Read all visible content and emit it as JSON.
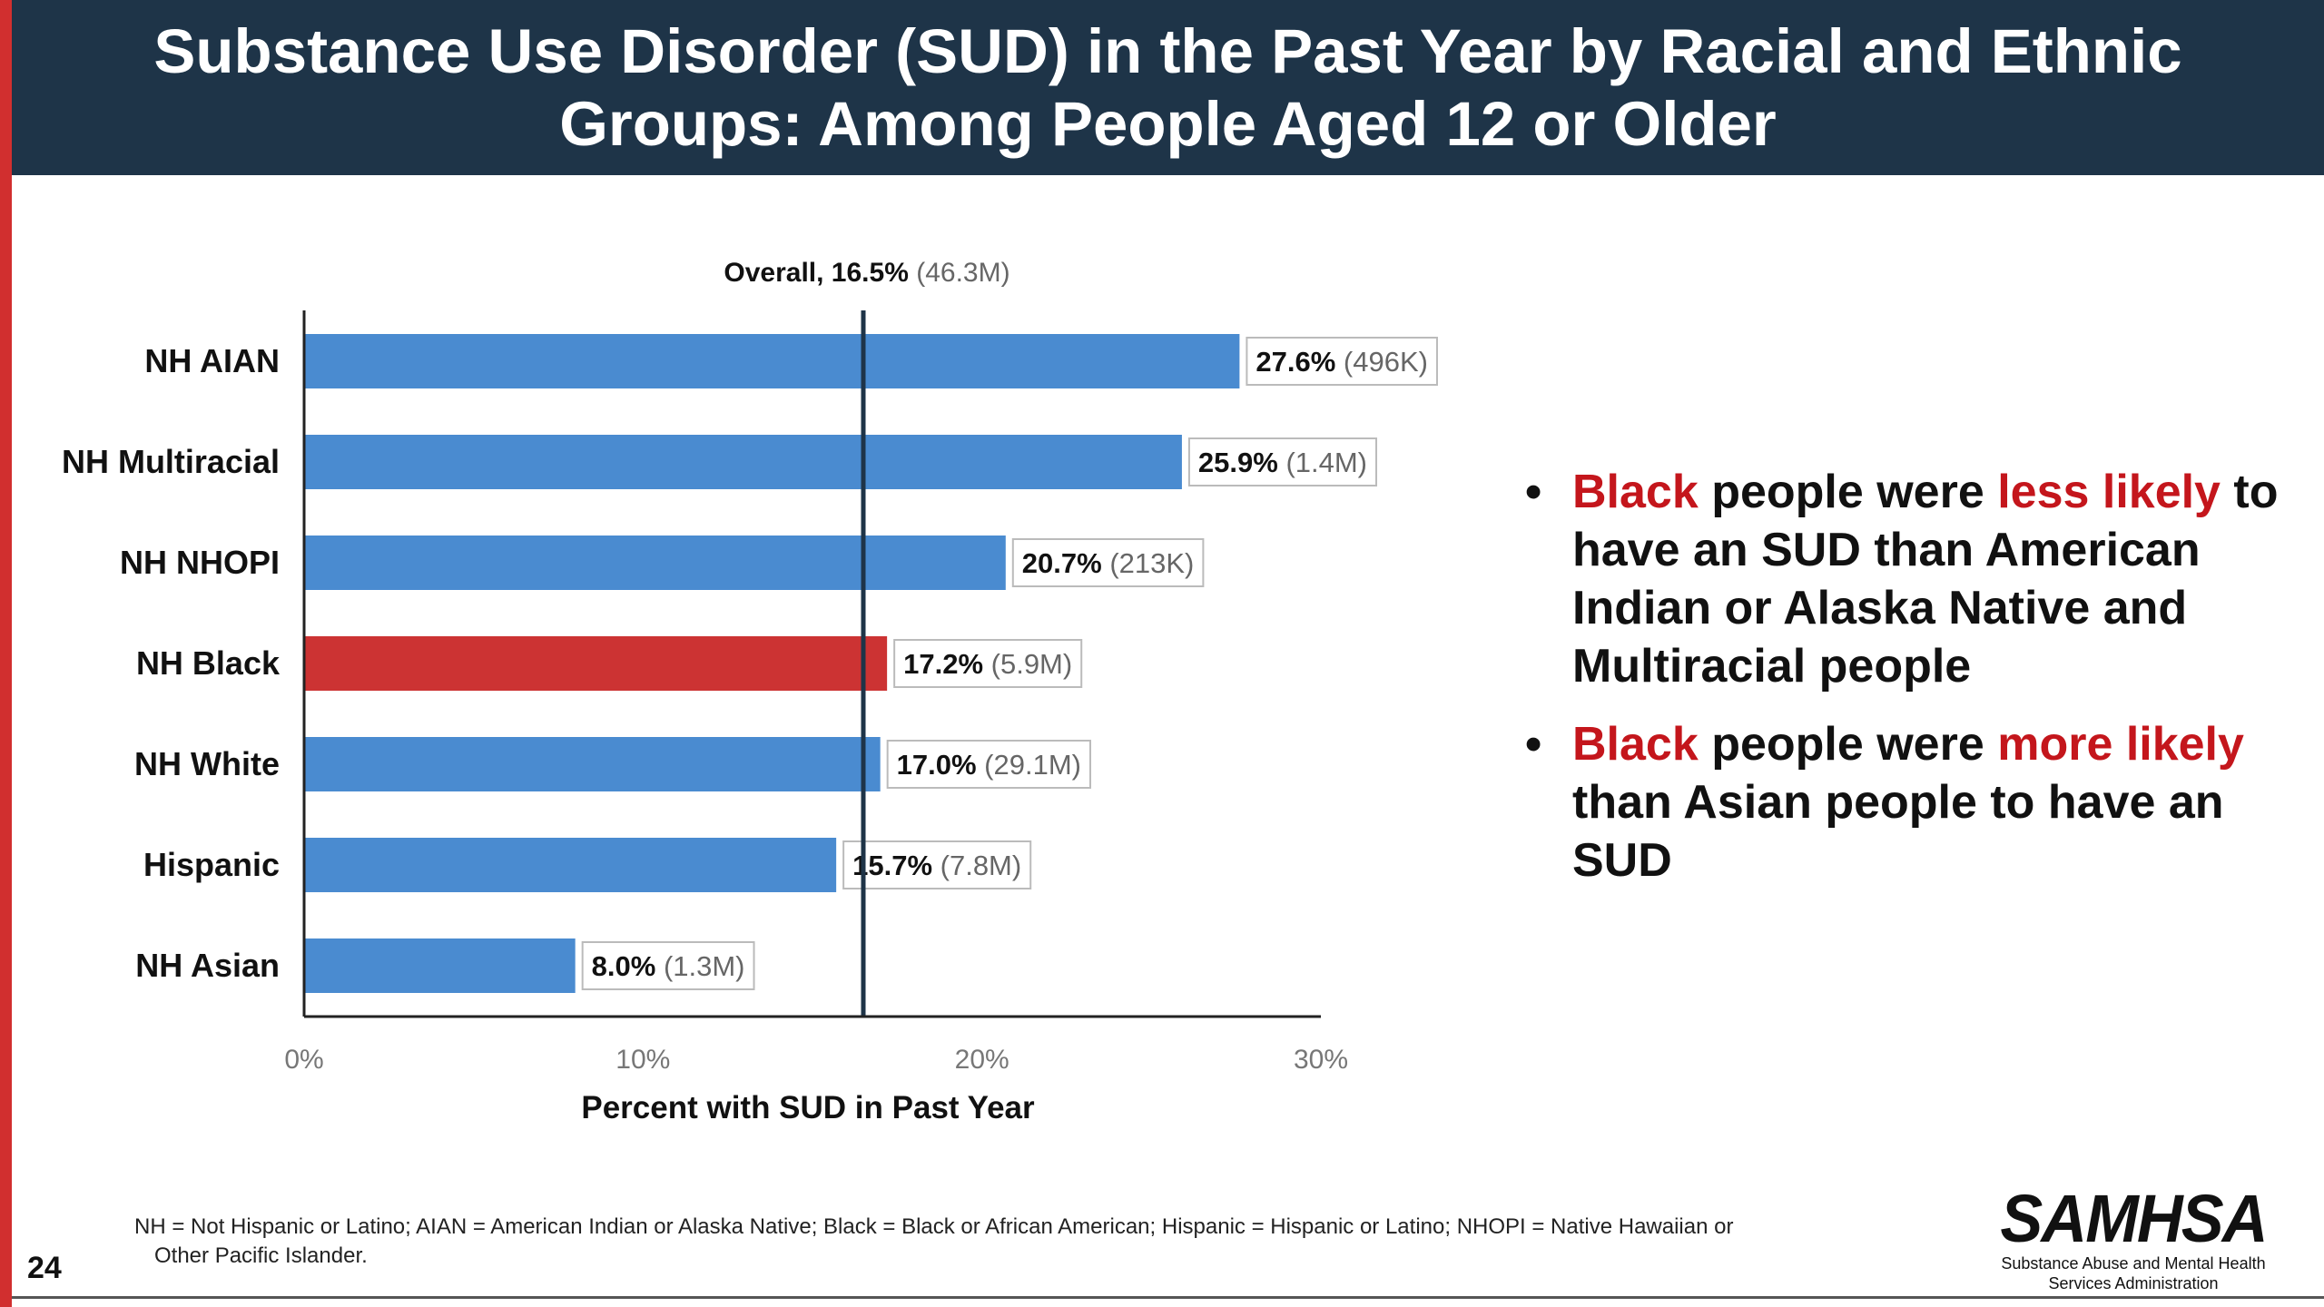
{
  "slide": {
    "title": "Substance Use Disorder (SUD) in the Past Year by Racial and Ethnic Groups: Among People Aged 12 or Older",
    "page_number": "24",
    "footnote_line1": "NH = Not Hispanic or Latino; AIAN = American Indian or Alaska Native; Black = Black or African American; Hispanic = Hispanic or Latino; NHOPI = Native Hawaiian or",
    "footnote_line2": "Other Pacific Islander.",
    "logo_text": "SAMHSA",
    "logo_subtitle_line1": "Substance Abuse and Mental Health",
    "logo_subtitle_line2": "Services Administration",
    "bullets": [
      {
        "parts": [
          {
            "text": "Black",
            "highlight": true
          },
          {
            "text": " people were ",
            "highlight": false
          },
          {
            "text": "less likely",
            "highlight": true
          },
          {
            "text": " to have an SUD than American Indian or Alaska Native and Multiracial people",
            "highlight": false
          }
        ]
      },
      {
        "parts": [
          {
            "text": "Black",
            "highlight": true
          },
          {
            "text": " people were ",
            "highlight": false
          },
          {
            "text": "more likely",
            "highlight": true
          },
          {
            "text": " than Asian people to have an SUD",
            "highlight": false
          }
        ]
      }
    ],
    "colors": {
      "header_bg": "#1e3448",
      "accent_red": "#d12f2f",
      "highlight_text": "#c4161c"
    }
  },
  "chart_data": {
    "type": "bar",
    "orientation": "horizontal",
    "categories": [
      "NH AIAN",
      "NH Multiracial",
      "NH NHOPI",
      "NH Black",
      "NH White",
      "Hispanic",
      "NH Asian"
    ],
    "values": [
      27.6,
      25.9,
      20.7,
      17.2,
      17.0,
      15.7,
      8.0
    ],
    "value_labels": [
      "27.6%",
      "25.9%",
      "20.7%",
      "17.2%",
      "17.0%",
      "15.7%",
      "8.0%"
    ],
    "count_labels": [
      "(496K)",
      "(1.4M)",
      "(213K)",
      "(5.9M)",
      "(29.1M)",
      "(7.8M)",
      "(1.3M)"
    ],
    "highlighted_category": "NH Black",
    "bar_color": "#4a8bd0",
    "highlight_color": "#cc3333",
    "reference_line": {
      "value": 16.5,
      "label": "Overall, 16.5%",
      "count_label": "(46.3M)"
    },
    "xlabel": "Percent with SUD in Past Year",
    "ylabel": "",
    "xlim": [
      0,
      30
    ],
    "xticks": [
      0,
      10,
      20,
      30
    ],
    "xtick_labels": [
      "0%",
      "10%",
      "20%",
      "30%"
    ],
    "grid": false,
    "legend": "none"
  }
}
